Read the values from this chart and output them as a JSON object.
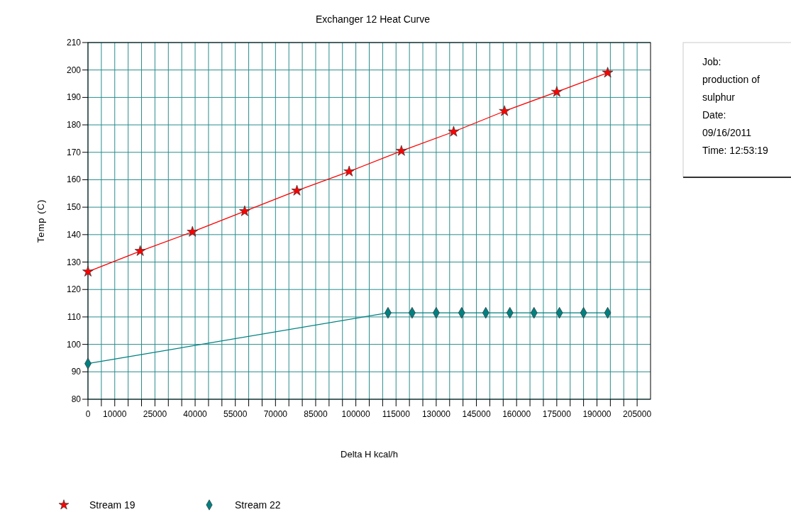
{
  "chart_data": {
    "type": "line",
    "title": "Exchanger 12 Heat Curve",
    "xlabel": "Delta H kcal/h",
    "ylabel": "Temp (C)",
    "xlim": [
      0,
      210000
    ],
    "ylim": [
      80,
      210
    ],
    "xticks": [
      0,
      {
        "value": 5000,
        "label": null
      },
      10000,
      {
        "value": 15000,
        "label": null
      },
      {
        "value": 20000,
        "label": null
      },
      25000,
      {
        "value": 30000,
        "label": null
      },
      {
        "value": 35000,
        "label": null
      },
      40000,
      {
        "value": 45000,
        "label": null
      },
      {
        "value": 50000,
        "label": null
      },
      55000,
      {
        "value": 60000,
        "label": null
      },
      {
        "value": 65000,
        "label": null
      },
      70000,
      {
        "value": 75000,
        "label": null
      },
      {
        "value": 80000,
        "label": null
      },
      85000,
      {
        "value": 90000,
        "label": null
      },
      {
        "value": 95000,
        "label": null
      },
      100000,
      {
        "value": 105000,
        "label": null
      },
      {
        "value": 110000,
        "label": null
      },
      115000,
      {
        "value": 120000,
        "label": null
      },
      {
        "value": 125000,
        "label": null
      },
      130000,
      {
        "value": 135000,
        "label": null
      },
      {
        "value": 140000,
        "label": null
      },
      145000,
      {
        "value": 150000,
        "label": null
      },
      {
        "value": 155000,
        "label": null
      },
      160000,
      {
        "value": 165000,
        "label": null
      },
      {
        "value": 170000,
        "label": null
      },
      175000,
      {
        "value": 180000,
        "label": null
      },
      {
        "value": 185000,
        "label": null
      },
      190000,
      {
        "value": 195000,
        "label": null
      },
      {
        "value": 200000,
        "label": null
      },
      205000
    ],
    "yticks": [
      80,
      90,
      100,
      110,
      120,
      130,
      140,
      150,
      160,
      170,
      180,
      190,
      200,
      210
    ],
    "grid": true,
    "legend": "bottom left",
    "series": [
      {
        "name": "Stream 19",
        "color": "#ff0000",
        "marker": "star",
        "x": [
          0,
          19500,
          39000,
          58500,
          78000,
          97500,
          117000,
          136500,
          155500,
          175000,
          194000
        ],
        "values": [
          126.5,
          134,
          141,
          148.5,
          156,
          163,
          170.5,
          177.5,
          185,
          192,
          199
        ]
      },
      {
        "name": "Stream 22",
        "color": "#008080",
        "marker": "diamond",
        "x": [
          0,
          112000,
          121000,
          130000,
          139500,
          148500,
          157500,
          166500,
          176000,
          185000,
          194000
        ],
        "values": [
          93,
          111.5,
          111.5,
          111.5,
          111.5,
          111.5,
          111.5,
          111.5,
          111.5,
          111.5,
          111.5
        ]
      }
    ],
    "annotations": [
      "Job:",
      "production of",
      "sulphur",
      "Date:",
      "09/16/2011",
      "Time: 12:53:19"
    ]
  }
}
